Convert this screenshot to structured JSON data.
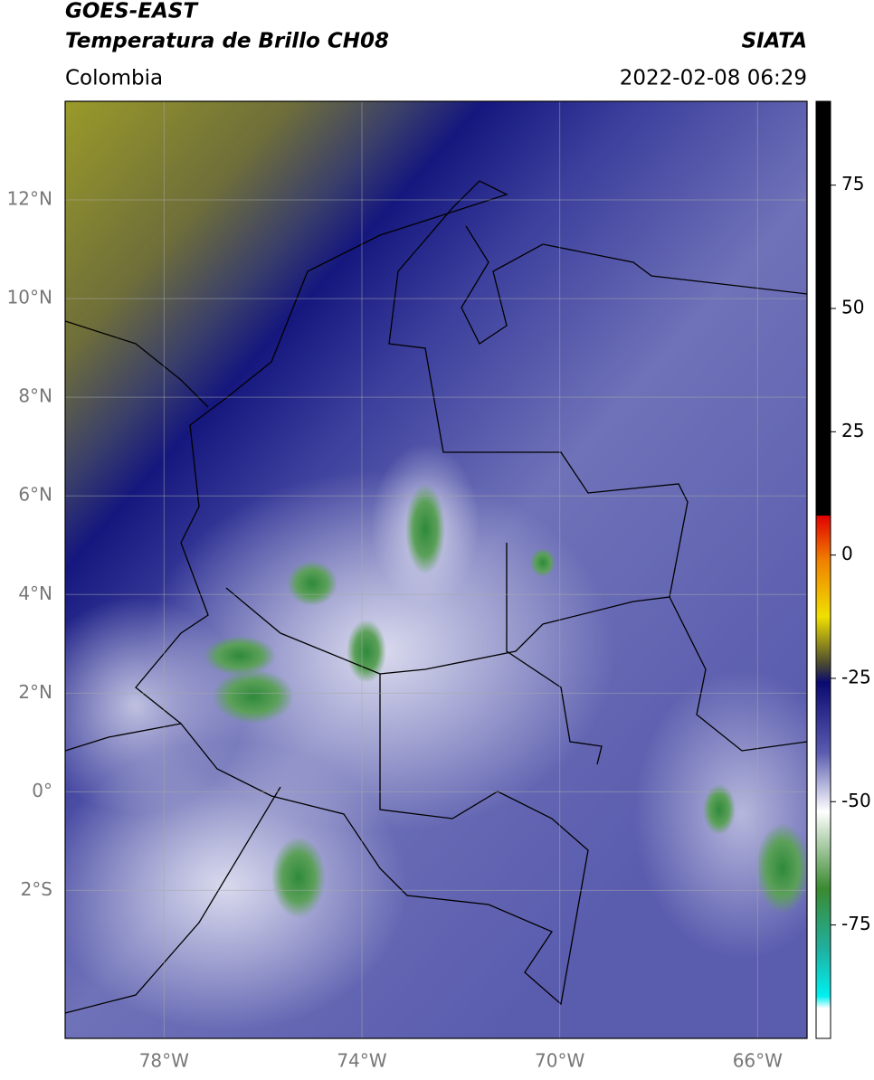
{
  "header": {
    "title": "GOES-EAST",
    "subtitle": "Temperatura de Brillo CH08",
    "source": "SIATA",
    "region": "Colombia",
    "timestamp": "2022-02-08 06:29"
  },
  "map": {
    "xlim": [
      -80,
      -65
    ],
    "ylim": [
      -5,
      14
    ],
    "xticks": [
      {
        "value": -78,
        "label": "78°W"
      },
      {
        "value": -74,
        "label": "74°W"
      },
      {
        "value": -70,
        "label": "70°W"
      },
      {
        "value": -66,
        "label": "66°W"
      }
    ],
    "yticks": [
      {
        "value": 12,
        "label": "12°N"
      },
      {
        "value": 10,
        "label": "10°N"
      },
      {
        "value": 8,
        "label": "8°N"
      },
      {
        "value": 6,
        "label": "6°N"
      },
      {
        "value": 4,
        "label": "4°N"
      },
      {
        "value": 2,
        "label": "2°N"
      },
      {
        "value": 0,
        "label": "0°"
      },
      {
        "value": -2,
        "label": "2°S"
      }
    ]
  },
  "colorbar": {
    "lim": [
      -98,
      92
    ],
    "ticks": [
      75,
      50,
      25,
      0,
      -25,
      -50,
      -75
    ]
  }
}
